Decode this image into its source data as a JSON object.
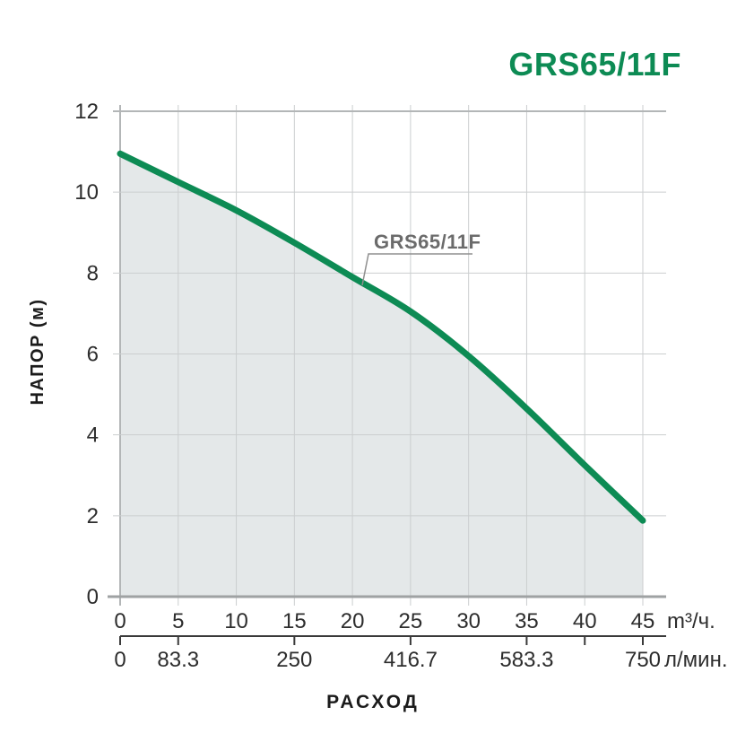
{
  "header": {
    "title": "GRS65/11F"
  },
  "chart_data": {
    "type": "area",
    "title": "GRS65/11F",
    "curve_label": "GRS65/11F",
    "xlabel": "РАСХОД",
    "ylabel": "НАПОР (м)",
    "xlim": [
      0,
      45
    ],
    "ylim": [
      0,
      12
    ],
    "grid": true,
    "legend": false,
    "series": [
      {
        "name": "GRS65/11F",
        "x": [
          0,
          5,
          10,
          15,
          20,
          25,
          30,
          35,
          40,
          45
        ],
        "y": [
          10.95,
          10.25,
          9.55,
          8.75,
          7.9,
          7.05,
          5.95,
          4.65,
          3.25,
          1.88
        ]
      }
    ],
    "y_ticks": [
      0,
      2,
      4,
      6,
      8,
      10,
      12
    ],
    "x_axis_primary": {
      "unit": "m³/ч.",
      "ticks": [
        0,
        5,
        10,
        15,
        20,
        25,
        30,
        35,
        40,
        45
      ]
    },
    "x_axis_secondary": {
      "unit": "л/мин.",
      "max": 750,
      "ticks": [
        {
          "v": 0,
          "label": "0"
        },
        {
          "v": 83.3,
          "label": "83.3"
        },
        {
          "v": 250,
          "label": "250"
        },
        {
          "v": 416.7,
          "label": "416.7"
        },
        {
          "v": 583.3,
          "label": "583.3"
        },
        {
          "v": 666.7,
          "label": ""
        },
        {
          "v": 750,
          "label": "750"
        }
      ]
    },
    "colors": {
      "curve": "#0d8b54",
      "fill": "#e4e8e9",
      "grid": "#cbcecf",
      "grid_strong": "#b3b6b7",
      "baseline": "#9fa2a3",
      "secondary_axis": "#3a3a3a",
      "callout": "#8f8f8f",
      "label_gray": "#6b6b6b",
      "tick_text": "#2d2d2d"
    }
  }
}
